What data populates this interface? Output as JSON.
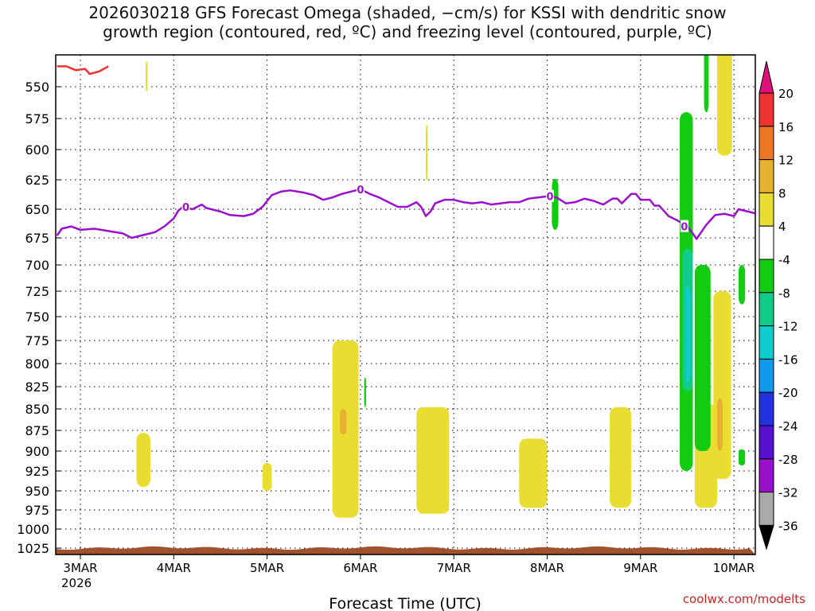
{
  "chart_data": {
    "type": "heatmap",
    "title_line1": "2026030218 GFS Forecast Omega (shaded, −cm/s) for KSSI with dendritic snow",
    "title_line2": "growth region (contoured, red, ºC) and freezing level (contoured, purple, ºC)",
    "xlabel": "Forecast Time (UTC)",
    "ylabel": "",
    "y_ticks": [
      550,
      575,
      600,
      625,
      650,
      675,
      700,
      725,
      750,
      775,
      800,
      825,
      850,
      875,
      900,
      925,
      950,
      975,
      1000,
      1025
    ],
    "y_tick_labels": [
      "550",
      "575",
      "600",
      "625",
      "650",
      "675",
      "700",
      "725",
      "750",
      "775",
      "800",
      "825",
      "850",
      "875",
      "900",
      "925",
      "950",
      "975",
      "1000",
      "1025"
    ],
    "x_ticks": [
      0,
      1,
      2,
      3,
      4,
      5,
      6,
      7
    ],
    "x_tick_labels": [
      "3MAR",
      "4MAR",
      "5MAR",
      "6MAR",
      "7MAR",
      "8MAR",
      "9MAR",
      "10MAR"
    ],
    "x_sub_label": "2026",
    "xlim_days": [
      -0.22,
      7.25
    ],
    "colorbar_labels": [
      "20",
      "16",
      "12",
      "8",
      "4",
      "-4",
      "-8",
      "-12",
      "-16",
      "-20",
      "-24",
      "-28",
      "-32",
      "-36"
    ],
    "colorbar_colors": [
      "#ee3333",
      "#ee7722",
      "#e8b030",
      "#e8dd30",
      "#ffffff",
      "#11cc11",
      "#11cc88",
      "#11cccc",
      "#1199ee",
      "#2233dd",
      "#5511cc",
      "#9911cc",
      "#aaaaaa"
    ],
    "colorbar_top_color": "#dd1177",
    "colorbar_bottom_color": "#000000",
    "freezing_level_color": "#9911cc",
    "dgz_color": "#ee3333",
    "terrain_color": "#a0522d",
    "freezing_level": {
      "label": "0",
      "points": [
        [
          -0.25,
          673
        ],
        [
          -0.2,
          667
        ],
        [
          -0.1,
          665
        ],
        [
          0,
          668
        ],
        [
          0.15,
          667
        ],
        [
          0.3,
          669
        ],
        [
          0.45,
          671
        ],
        [
          0.55,
          675
        ],
        [
          0.65,
          673
        ],
        [
          0.8,
          670
        ],
        [
          0.9,
          665
        ],
        [
          1.0,
          658
        ],
        [
          1.05,
          651
        ],
        [
          1.1,
          648
        ],
        [
          1.2,
          650
        ],
        [
          1.3,
          646
        ],
        [
          1.35,
          649
        ],
        [
          1.5,
          652
        ],
        [
          1.6,
          655
        ],
        [
          1.75,
          656
        ],
        [
          1.85,
          654
        ],
        [
          1.95,
          648
        ],
        [
          2.0,
          643
        ],
        [
          2.05,
          638
        ],
        [
          2.15,
          635
        ],
        [
          2.25,
          634
        ],
        [
          2.4,
          636
        ],
        [
          2.5,
          638
        ],
        [
          2.6,
          642
        ],
        [
          2.7,
          640
        ],
        [
          2.8,
          637
        ],
        [
          2.9,
          635
        ],
        [
          3.0,
          633
        ],
        [
          3.1,
          637
        ],
        [
          3.2,
          640
        ],
        [
          3.3,
          644
        ],
        [
          3.4,
          648
        ],
        [
          3.5,
          648
        ],
        [
          3.6,
          644
        ],
        [
          3.65,
          648
        ],
        [
          3.7,
          656
        ],
        [
          3.75,
          652
        ],
        [
          3.8,
          645
        ],
        [
          3.9,
          642
        ],
        [
          4.0,
          642
        ],
        [
          4.1,
          644
        ],
        [
          4.2,
          645
        ],
        [
          4.3,
          644
        ],
        [
          4.4,
          646
        ],
        [
          4.5,
          645
        ],
        [
          4.6,
          644
        ],
        [
          4.7,
          644
        ],
        [
          4.8,
          641
        ],
        [
          4.9,
          640
        ],
        [
          5.0,
          639
        ],
        [
          5.1,
          640
        ],
        [
          5.2,
          645
        ],
        [
          5.3,
          644
        ],
        [
          5.4,
          641
        ],
        [
          5.5,
          643
        ],
        [
          5.6,
          646
        ],
        [
          5.7,
          641
        ],
        [
          5.75,
          641
        ],
        [
          5.8,
          645
        ],
        [
          5.9,
          637
        ],
        [
          5.95,
          637
        ],
        [
          6.0,
          642
        ],
        [
          6.1,
          642
        ],
        [
          6.15,
          647
        ],
        [
          6.2,
          647
        ],
        [
          6.3,
          656
        ],
        [
          6.4,
          660
        ],
        [
          6.5,
          665
        ],
        [
          6.55,
          670
        ],
        [
          6.6,
          676
        ],
        [
          6.65,
          670
        ],
        [
          6.7,
          664
        ],
        [
          6.8,
          655
        ],
        [
          6.9,
          654
        ],
        [
          7.0,
          656
        ],
        [
          7.05,
          650
        ],
        [
          7.15,
          652
        ],
        [
          7.25,
          654
        ]
      ]
    },
    "dgz_contour": {
      "points": [
        [
          -0.25,
          534
        ],
        [
          -0.15,
          534
        ],
        [
          -0.05,
          537
        ],
        [
          0.05,
          536
        ],
        [
          0.1,
          540
        ],
        [
          0.2,
          538
        ],
        [
          0.3,
          534
        ]
      ]
    },
    "omega_regions": [
      {
        "value": 4,
        "color": "#e8dd30",
        "days": [
          0.7,
          0.72
        ],
        "p": [
          530,
          554
        ]
      },
      {
        "value": 4,
        "color": "#e8dd30",
        "days": [
          0.6,
          0.75
        ],
        "p": [
          878,
          945
        ]
      },
      {
        "value": 4,
        "color": "#e8dd30",
        "days": [
          1.95,
          2.05
        ],
        "p": [
          915,
          950
        ]
      },
      {
        "value": 4,
        "color": "#e8dd30",
        "days": [
          2.7,
          2.98
        ],
        "p": [
          775,
          985
        ]
      },
      {
        "value": 8,
        "color": "#e8b030",
        "days": [
          2.78,
          2.85
        ],
        "p": [
          850,
          880
        ]
      },
      {
        "value": -4,
        "color": "#11cc11",
        "days": [
          3.04,
          3.06
        ],
        "p": [
          815,
          848
        ]
      },
      {
        "value": 4,
        "color": "#e8dd30",
        "days": [
          3.7,
          3.72
        ],
        "p": [
          580,
          626
        ]
      },
      {
        "value": 4,
        "color": "#e8dd30",
        "days": [
          3.6,
          3.95
        ],
        "p": [
          848,
          980
        ]
      },
      {
        "value": 4,
        "color": "#e8dd30",
        "days": [
          4.7,
          5.0
        ],
        "p": [
          885,
          972
        ]
      },
      {
        "value": 4,
        "color": "#e8dd30",
        "days": [
          5.67,
          5.9
        ],
        "p": [
          848,
          972
        ]
      },
      {
        "value": 4,
        "color": "#e8dd30",
        "days": [
          6.58,
          6.82
        ],
        "p": [
          845,
          972
        ]
      },
      {
        "value": -4,
        "color": "#11cc11",
        "days": [
          5.05,
          5.12
        ],
        "p": [
          624,
          668
        ]
      },
      {
        "value": -4,
        "color": "#11cc11",
        "days": [
          6.42,
          6.56
        ],
        "p": [
          570,
          925
        ]
      },
      {
        "value": -8,
        "color": "#11cc88",
        "days": [
          6.45,
          6.56
        ],
        "p": [
          685,
          830
        ]
      },
      {
        "value": -12,
        "color": "#11cccc",
        "days": [
          6.48,
          6.53
        ],
        "p": [
          720,
          820
        ]
      },
      {
        "value": -4,
        "color": "#11cc11",
        "days": [
          6.58,
          6.75
        ],
        "p": [
          700,
          900
        ]
      },
      {
        "value": -4,
        "color": "#11cc11",
        "days": [
          6.68,
          6.73
        ],
        "p": [
          520,
          570
        ]
      },
      {
        "value": 4,
        "color": "#e8dd30",
        "days": [
          6.78,
          6.97
        ],
        "p": [
          725,
          935
        ]
      },
      {
        "value": 8,
        "color": "#e8b030",
        "days": [
          6.82,
          6.88
        ],
        "p": [
          838,
          900
        ]
      },
      {
        "value": 4,
        "color": "#e8dd30",
        "days": [
          6.82,
          6.98
        ],
        "p": [
          520,
          605
        ]
      },
      {
        "value": -4,
        "color": "#11cc11",
        "days": [
          7.05,
          7.12
        ],
        "p": [
          700,
          738
        ]
      },
      {
        "value": -4,
        "color": "#11cc11",
        "days": [
          7.05,
          7.12
        ],
        "p": [
          898,
          918
        ]
      }
    ],
    "surface_pressure": 1027
  },
  "credit": "coolwx.com/modelts"
}
